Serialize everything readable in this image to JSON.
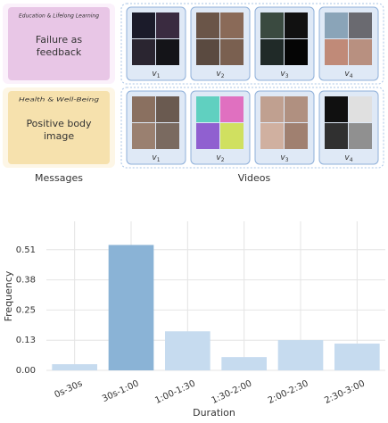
{
  "messages_panel": {
    "rows": [
      {
        "category": "Education & Lifelong Learning",
        "message": "Failure as feedback"
      },
      {
        "category": "Health & Well-Being",
        "message": "Positive body image"
      }
    ],
    "video_labels": [
      {
        "base": "v",
        "sub": "1"
      },
      {
        "base": "v",
        "sub": "2"
      },
      {
        "base": "v",
        "sub": "3"
      },
      {
        "base": "v",
        "sub": "4"
      }
    ],
    "messages_label": "Messages",
    "videos_label": "Videos"
  },
  "chart_data": {
    "type": "bar",
    "x_label": "Duration",
    "y_label": "Frequency",
    "categories": [
      "0s-30s",
      "30s-1:00",
      "1:00-1:30",
      "1:30-2:00",
      "2:00-2:30",
      "2:30-3:00"
    ],
    "values": [
      0.026,
      0.53,
      0.165,
      0.056,
      0.128,
      0.113
    ],
    "colors": [
      "#c6dbef",
      "#8ab3d6",
      "#c6dbef",
      "#c6dbef",
      "#c6dbef",
      "#c6dbef"
    ],
    "ylim": [
      0,
      0.63
    ],
    "yticks": [
      {
        "value": 0,
        "label": "0.00"
      },
      {
        "value": 0.1275,
        "label": "0.13"
      },
      {
        "value": 0.255,
        "label": "0.25"
      },
      {
        "value": 0.3825,
        "label": "0.38"
      },
      {
        "value": 0.51,
        "label": "0.51"
      }
    ],
    "grid": true
  }
}
